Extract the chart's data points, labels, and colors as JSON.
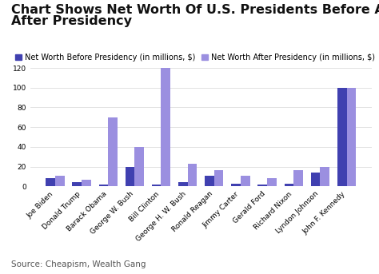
{
  "presidents": [
    "Joe Biden",
    "Donald Trump",
    "Barack Obama",
    "George W. Bush",
    "Bill Clinton",
    "George H. W. Bush",
    "Ronald Reagan",
    "Jimmy Carter",
    "Gerald Ford",
    "Richard Nixon",
    "Lyndon Johnson",
    "John F. Kennedy"
  ],
  "before": [
    8,
    4,
    1.5,
    20,
    1.5,
    4,
    11,
    3,
    2,
    3,
    14,
    100
  ],
  "after": [
    11,
    7,
    70,
    40,
    120,
    23,
    16,
    11,
    8,
    16,
    20,
    100
  ],
  "color_before": "#4040b0",
  "color_after": "#9b8fe0",
  "title_line1": "Chart Shows Net Worth Of U.S. Presidents Before And",
  "title_line2": "After Presidency",
  "legend_before": "Net Worth Before Presidency (in millions, $)",
  "legend_after": "Net Worth After Presidency (in millions, $)",
  "source": "Source: Cheapism, Wealth Gang",
  "ylim": [
    0,
    125
  ],
  "yticks": [
    0,
    20,
    40,
    60,
    80,
    100,
    120
  ],
  "background_color": "#ffffff",
  "title_fontsize": 11.5,
  "legend_fontsize": 7,
  "tick_fontsize": 6.5,
  "source_fontsize": 7.5
}
